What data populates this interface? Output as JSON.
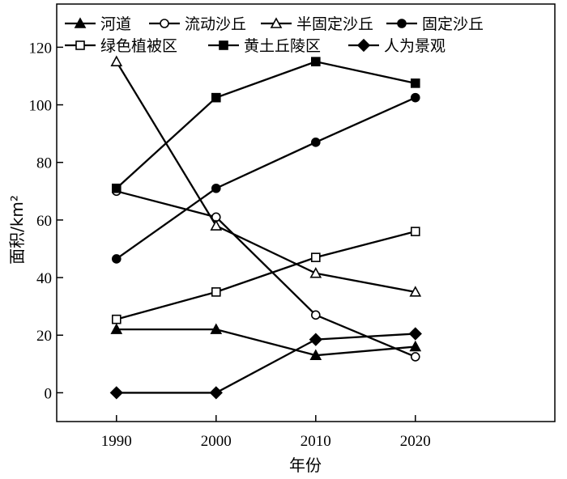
{
  "chart_data": {
    "type": "line",
    "title": "",
    "xlabel": "年份",
    "ylabel": "面积/km²",
    "x": [
      1990,
      2000,
      2010,
      2020
    ],
    "xlim": [
      1984,
      2034
    ],
    "ylim": [
      -10,
      135
    ],
    "yticks": [
      0,
      20,
      40,
      60,
      80,
      100,
      120
    ],
    "grid": false,
    "legend_position": "top",
    "series": [
      {
        "name": "河道",
        "marker": "triangle-filled",
        "values": [
          22,
          22,
          13,
          16
        ]
      },
      {
        "name": "流动沙丘",
        "marker": "circle-open",
        "values": [
          70,
          61,
          27,
          12.5
        ]
      },
      {
        "name": "半固定沙丘",
        "marker": "triangle-open",
        "values": [
          115,
          58,
          41.5,
          35
        ]
      },
      {
        "name": "固定沙丘",
        "marker": "circle-filled",
        "values": [
          46.5,
          71,
          87,
          102.5
        ]
      },
      {
        "name": "绿色植被区",
        "marker": "square-open",
        "values": [
          25.5,
          35,
          47,
          56
        ]
      },
      {
        "name": "黄土丘陵区",
        "marker": "square-filled",
        "values": [
          71,
          102.5,
          115,
          107.5
        ]
      },
      {
        "name": "人为景观",
        "marker": "diamond-filled",
        "values": [
          0,
          0,
          18.5,
          20.5
        ]
      }
    ]
  }
}
